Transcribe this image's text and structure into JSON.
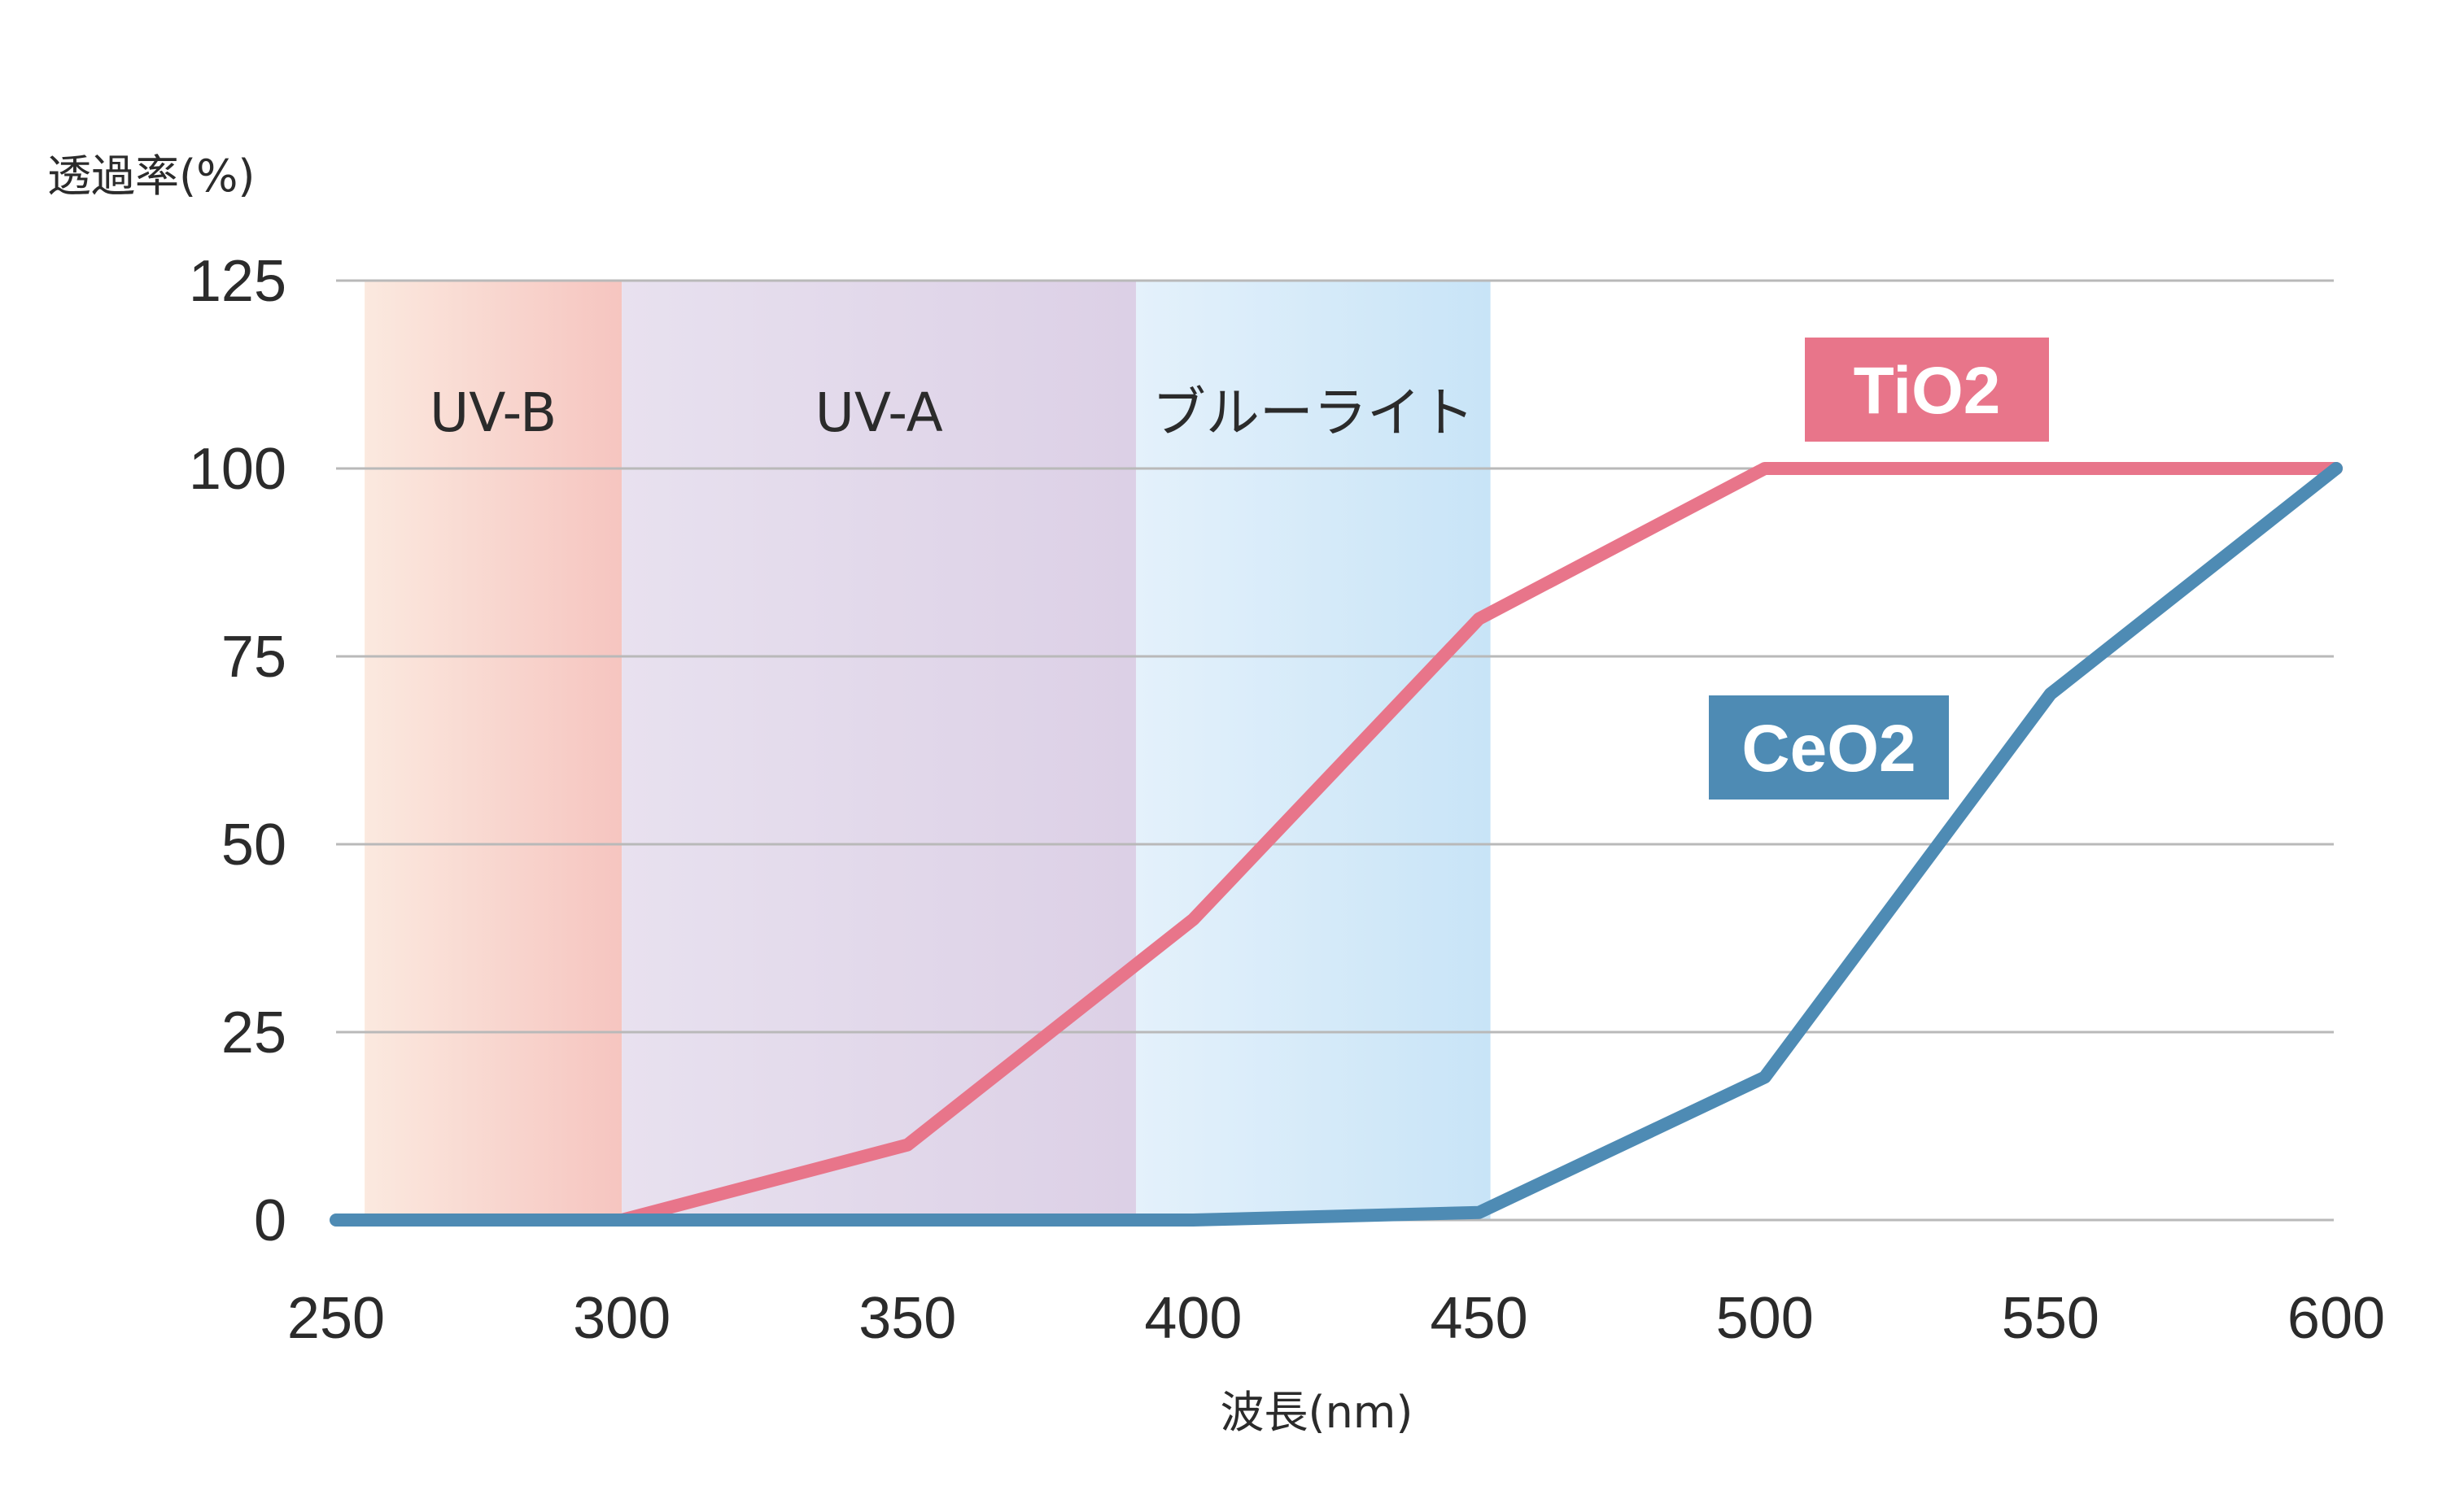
{
  "chart_data": {
    "type": "line",
    "ylabel": "透過率(%)",
    "xlabel": "波長(nm)",
    "xlim": [
      250,
      600
    ],
    "ylim": [
      0,
      125
    ],
    "x_ticks": [
      250,
      300,
      350,
      400,
      450,
      500,
      550,
      600
    ],
    "y_ticks": [
      0,
      25,
      50,
      75,
      100,
      125
    ],
    "grid": "horizontal",
    "bands": [
      {
        "label": "UV-B",
        "from": 255,
        "to": 300,
        "color_light": "#fbe9df",
        "color_dark": "#f6c5c0"
      },
      {
        "label": "UV-A",
        "from": 300,
        "to": 390,
        "color_light": "#e8e1ef",
        "color_dark": "#dcd0e6"
      },
      {
        "label": "ブルーライト",
        "from": 390,
        "to": 452,
        "color_light": "#e4f1fb",
        "color_dark": "#c8e4f7"
      }
    ],
    "series": [
      {
        "name": "TiO2",
        "color": "#e8758a",
        "x": [
          300,
          350,
          400,
          450,
          500,
          600
        ],
        "y": [
          0,
          10,
          40,
          80,
          100,
          100
        ]
      },
      {
        "name": "CeO2",
        "color": "#4e8bb4",
        "x": [
          250,
          300,
          400,
          450,
          500,
          550,
          600
        ],
        "y": [
          0,
          0,
          0,
          1,
          19,
          70,
          100
        ]
      }
    ]
  }
}
